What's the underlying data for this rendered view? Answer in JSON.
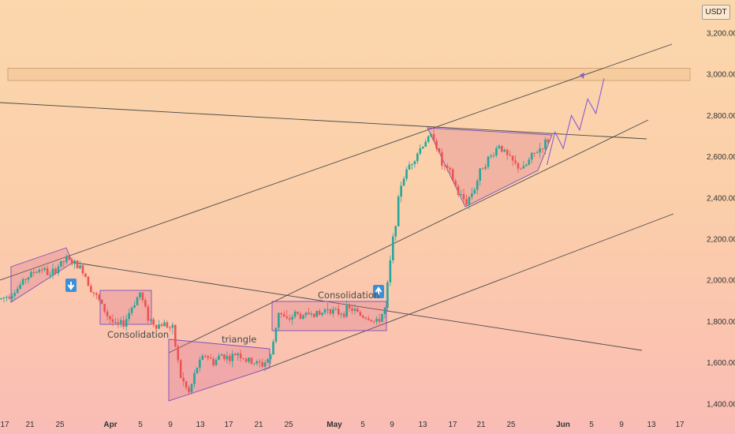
{
  "chart_data": {
    "type": "candlestick",
    "currency_label": "USDT",
    "y_ticks": [
      "3,200.00",
      "3,000.00",
      "2,800.00",
      "2,600.00",
      "2,400.00",
      "2,200.00",
      "2,000.00",
      "1,800.00",
      "1,600.00",
      "1,400.00"
    ],
    "y_tick_values": [
      3200,
      3000,
      2800,
      2600,
      2400,
      2200,
      2000,
      1800,
      1600,
      1400
    ],
    "ylim": [
      1360,
      3260
    ],
    "x_ticks": [
      "17",
      "21",
      "25",
      "Apr",
      "5",
      "9",
      "13",
      "17",
      "21",
      "25",
      "May",
      "5",
      "9",
      "13",
      "17",
      "21",
      "25",
      "Jun",
      "5",
      "9",
      "13",
      "17"
    ],
    "bold_x_ticks": [
      "Apr",
      "May",
      "Jun"
    ],
    "annotations": [
      "Consolidation",
      "triangle",
      "Consolidation"
    ],
    "resistance_zone": [
      2970,
      3030
    ],
    "price_path": [
      [
        0,
        1910
      ],
      [
        3,
        1930
      ],
      [
        6,
        1960
      ],
      [
        9,
        2010
      ],
      [
        12,
        2040
      ],
      [
        15,
        2060
      ],
      [
        18,
        2020
      ],
      [
        21,
        2070
      ],
      [
        24,
        2100
      ],
      [
        27,
        2080
      ],
      [
        30,
        2050
      ],
      [
        33,
        1960
      ],
      [
        36,
        1900
      ],
      [
        39,
        1830
      ],
      [
        42,
        1780
      ],
      [
        45,
        1790
      ],
      [
        48,
        1870
      ],
      [
        51,
        1940
      ],
      [
        54,
        1820
      ],
      [
        57,
        1780
      ],
      [
        60,
        1790
      ],
      [
        63,
        1760
      ],
      [
        66,
        1530
      ],
      [
        69,
        1450
      ],
      [
        72,
        1580
      ],
      [
        75,
        1640
      ],
      [
        78,
        1600
      ],
      [
        81,
        1640
      ],
      [
        84,
        1620
      ],
      [
        87,
        1650
      ],
      [
        90,
        1610
      ],
      [
        93,
        1600
      ],
      [
        96,
        1590
      ],
      [
        99,
        1630
      ],
      [
        102,
        1850
      ],
      [
        105,
        1800
      ],
      [
        108,
        1840
      ],
      [
        111,
        1820
      ],
      [
        114,
        1850
      ],
      [
        117,
        1830
      ],
      [
        120,
        1870
      ],
      [
        123,
        1840
      ],
      [
        126,
        1850
      ],
      [
        129,
        1860
      ],
      [
        132,
        1830
      ],
      [
        135,
        1820
      ],
      [
        138,
        1790
      ],
      [
        141,
        1860
      ],
      [
        144,
        2200
      ],
      [
        147,
        2470
      ],
      [
        150,
        2560
      ],
      [
        153,
        2620
      ],
      [
        156,
        2680
      ],
      [
        159,
        2700
      ],
      [
        162,
        2560
      ],
      [
        165,
        2520
      ],
      [
        168,
        2420
      ],
      [
        171,
        2380
      ],
      [
        174,
        2450
      ],
      [
        177,
        2560
      ],
      [
        180,
        2600
      ],
      [
        183,
        2660
      ],
      [
        186,
        2600
      ],
      [
        189,
        2560
      ],
      [
        192,
        2540
      ],
      [
        195,
        2600
      ],
      [
        198,
        2640
      ],
      [
        201,
        2680
      ]
    ],
    "projection_path": [
      [
        201,
        2560
      ],
      [
        204,
        2720
      ],
      [
        207,
        2640
      ],
      [
        210,
        2800
      ],
      [
        213,
        2730
      ],
      [
        216,
        2880
      ],
      [
        219,
        2810
      ],
      [
        222,
        2980
      ]
    ]
  }
}
